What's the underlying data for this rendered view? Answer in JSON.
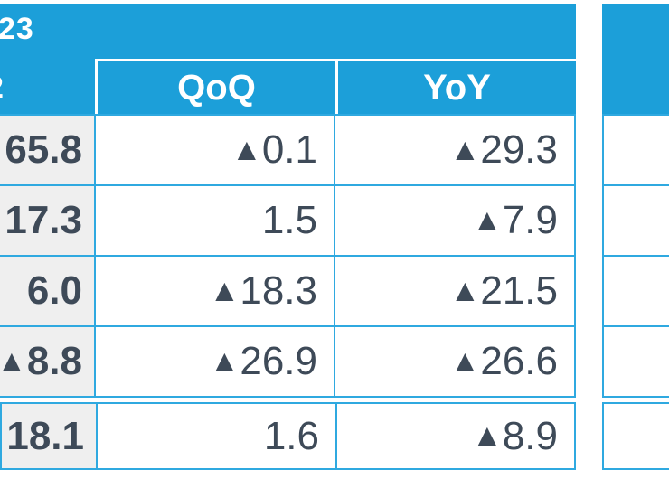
{
  "colors": {
    "header_blue": "#1C9FD9",
    "grid_blue": "#2FA9E0",
    "stub_gray": "#EFEFEF",
    "text_dark": "#3E4A58",
    "header_text": "#FFFFFF"
  },
  "chart_data": {
    "type": "table",
    "title_fragment": "23",
    "stub_header_fragment": "2",
    "columns": [
      "QoQ",
      "YoY"
    ],
    "rows": [
      {
        "label": "65.8",
        "qoq": "▲0.1",
        "yoy": "▲29.3"
      },
      {
        "label": "17.3",
        "qoq": "1.5",
        "yoy": "▲7.9"
      },
      {
        "label": "6.0",
        "qoq": "▲18.3",
        "yoy": "▲21.5"
      },
      {
        "label": "▲8.8",
        "qoq": "▲26.9",
        "yoy": "▲26.6"
      }
    ],
    "summary_row": {
      "label": "18.1",
      "qoq": "1.6",
      "yoy": "▲8.9"
    },
    "layout": {
      "grid": true,
      "negative_marker": "▲",
      "right_table_clipped": true
    }
  }
}
